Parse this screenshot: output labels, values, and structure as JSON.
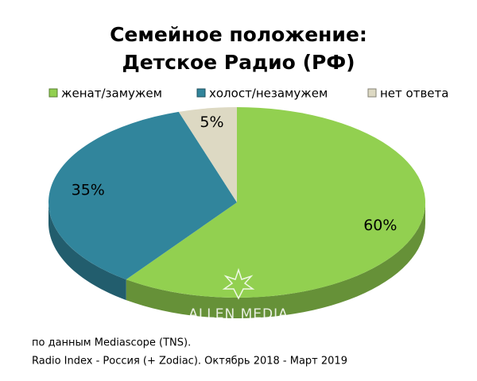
{
  "chart_data": {
    "type": "pie",
    "title": [
      "Семейное положение:",
      "Детское Радио (РФ)"
    ],
    "categories": [
      "женат/замужем",
      "холост/незамужем",
      "нет ответа"
    ],
    "values": [
      60,
      35,
      5
    ],
    "value_labels": [
      "60%",
      "35%",
      "5%"
    ],
    "colors": [
      "#92d050",
      "#31859c",
      "#ddd9c3"
    ],
    "legend": "top",
    "watermark": "ALLEN MEDIA",
    "source": [
      "по данным Mediascope (TNS).",
      "Radio Index - Россия (+ Zodiac). Октябрь 2018 - Март 2019"
    ]
  }
}
